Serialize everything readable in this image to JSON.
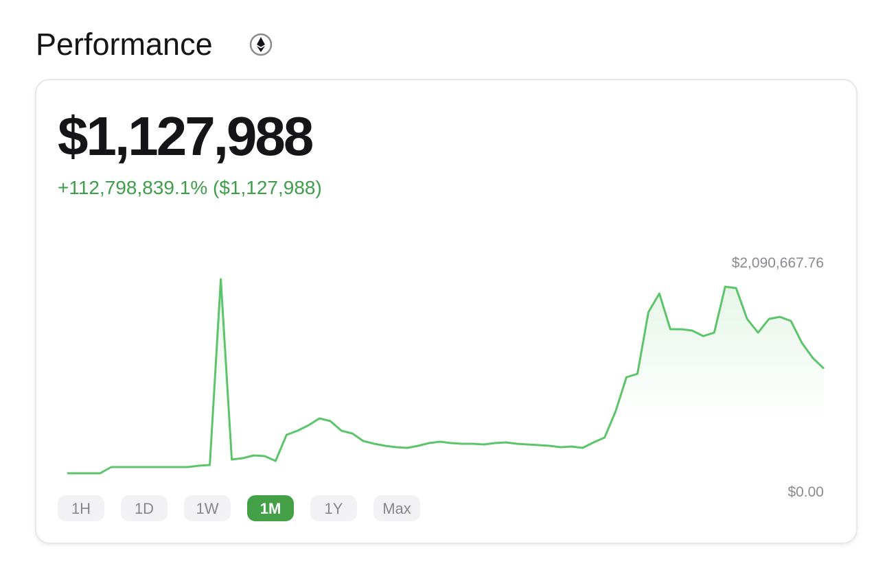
{
  "header": {
    "title": "Performance"
  },
  "card": {
    "value": "$1,127,988",
    "change": "+112,798,839.1% ($1,127,988)",
    "ranges": [
      "1H",
      "1D",
      "1W",
      "1M",
      "1Y",
      "Max"
    ],
    "active_range": 3
  },
  "chart_data": {
    "type": "line",
    "color": "#5cc46a",
    "ylim": [
      0,
      2090667.76
    ],
    "yticks": [
      {
        "value": 0,
        "label": "$0.00"
      },
      {
        "value": 2090667.76,
        "label": "$2,090,667.76"
      }
    ],
    "values": [
      0,
      0,
      0,
      0,
      66500,
      66500,
      66500,
      66500,
      66500,
      66500,
      66500,
      66500,
      81300,
      88700,
      2090667.76,
      147800,
      162500,
      192100,
      184700,
      133000,
      413700,
      458100,
      517200,
      591000,
      561500,
      458100,
      428500,
      347200,
      317700,
      295500,
      280700,
      273400,
      295500,
      325100,
      339800,
      325100,
      317700,
      317700,
      310300,
      325100,
      332500,
      317700,
      310300,
      302900,
      295500,
      280700,
      288100,
      273400,
      332500,
      384200,
      664900,
      1034300,
      1071300,
      1736200,
      1935700,
      1551500,
      1551500,
      1536700,
      1477600,
      1514500,
      2009500,
      1994800,
      1662300,
      1514500,
      1662300,
      1684500,
      1640100,
      1403700,
      1241200,
      1127988
    ]
  }
}
